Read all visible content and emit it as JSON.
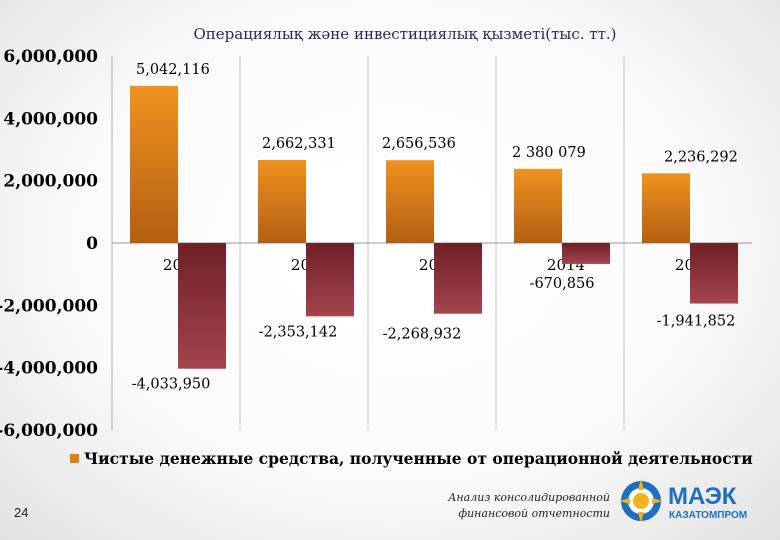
{
  "chart_data": {
    "type": "bar",
    "title": "Операциялық және инвестициялық қызметі(тыс. тт.)",
    "categories": [
      "2011",
      "2012",
      "2013",
      "2014",
      "2015"
    ],
    "series": [
      {
        "name": "Чистые денежные средства, полученные от операционной деятельности",
        "color": "#e07e1c",
        "values": [
          5042116,
          2662331,
          2656536,
          2380079,
          2236292
        ],
        "labels": [
          "5,042,116",
          "2,662,331",
          "2,656,536",
          "2 380 079",
          "2,236,292"
        ]
      },
      {
        "color": "#7a2630",
        "values": [
          -4033950,
          -2353142,
          -2268932,
          -670856,
          -1941852
        ],
        "labels": [
          "-4,033,950",
          "-2,353,142",
          "-2,268,932",
          "-670,856",
          "-1,941,852"
        ]
      }
    ],
    "ylim": [
      -6000000,
      6000000
    ],
    "yticks": [
      6000000,
      4000000,
      2000000,
      0,
      -2000000,
      -4000000,
      -6000000
    ],
    "ytick_labels": [
      "6,000,000",
      "4,000,000",
      "2,000,000",
      "0",
      "-2,000,000",
      "-4,000,000",
      "-6,000,000"
    ],
    "grid": "vertical category separators",
    "legend_position": "bottom"
  },
  "footer": {
    "page_number": "24",
    "caption_line1": "Анализ консолидированной",
    "caption_line2": "финансовой отчетности",
    "logo_text": "МАЭК",
    "logo_subtext": "КАЗАТОМПРОМ",
    "logo_color": "#1d6fc0"
  }
}
